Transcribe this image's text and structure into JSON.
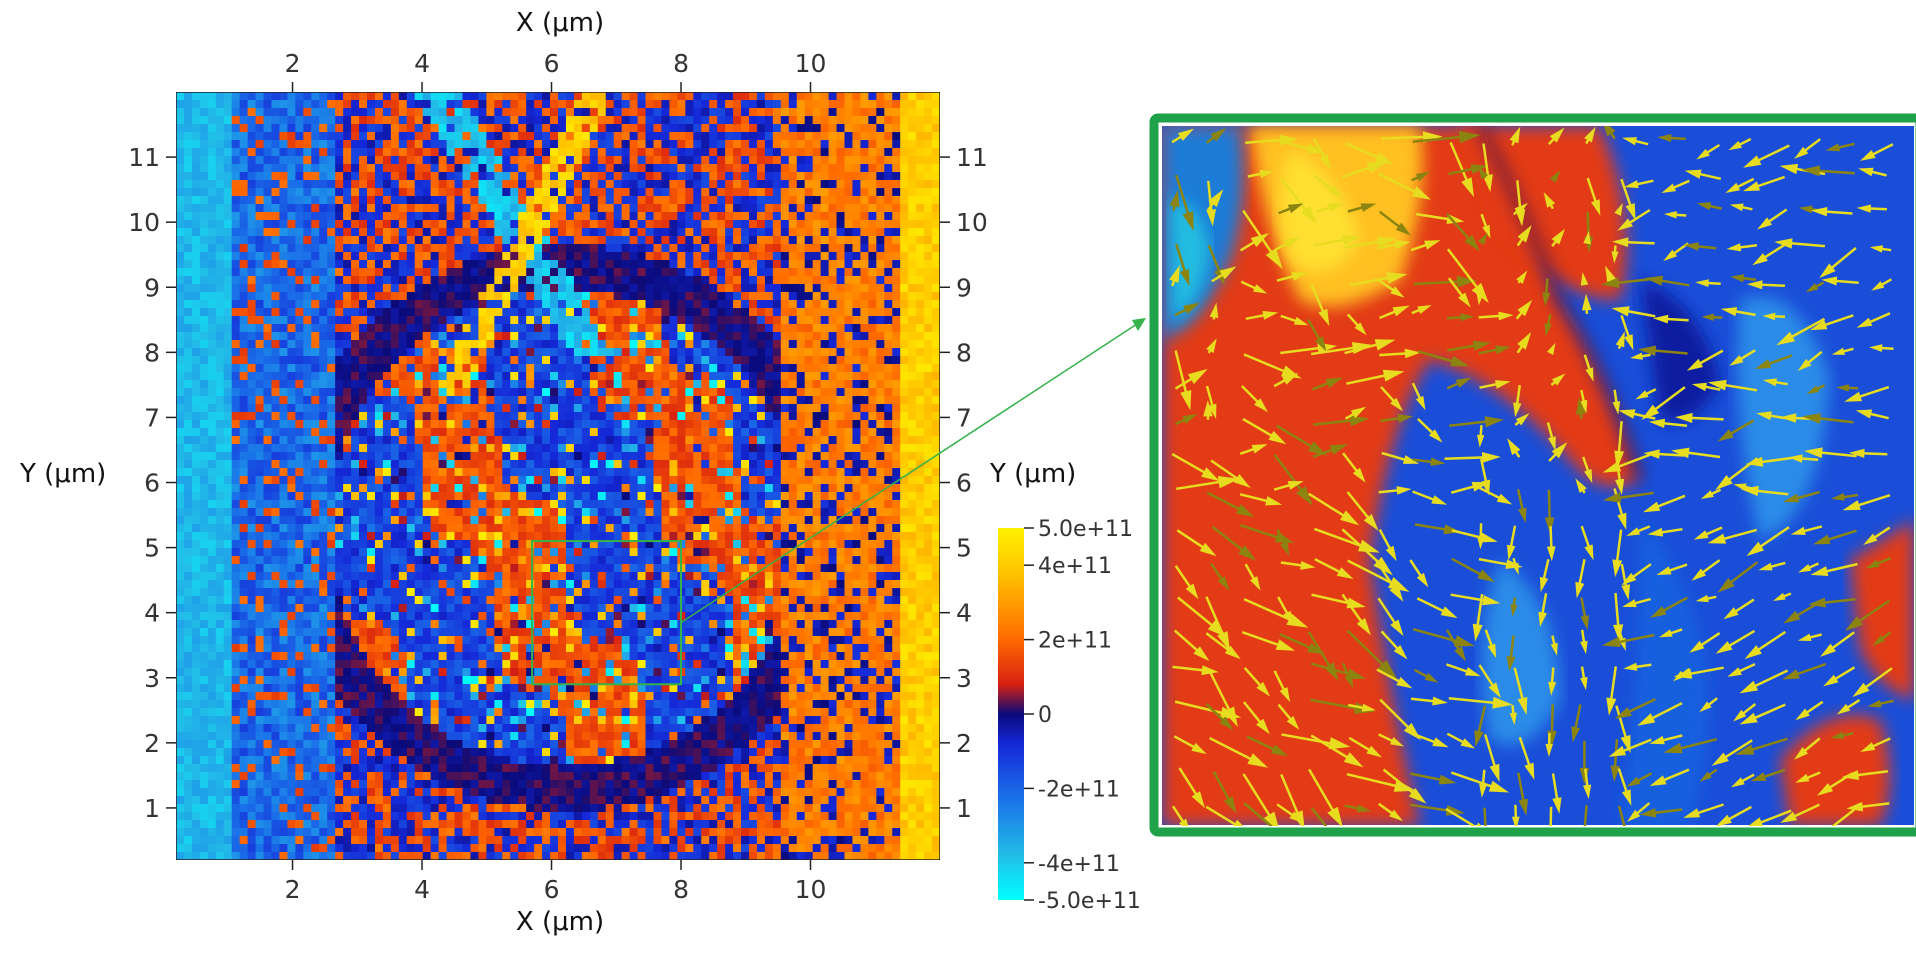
{
  "chart_data": [
    {
      "type": "heatmap",
      "title": "",
      "xlabel": "X (μm)",
      "ylabel": "Y (μm)",
      "xlim": [
        0.2,
        12.0
      ],
      "ylim": [
        0.2,
        12.0
      ],
      "x_ticks": [
        2,
        4,
        6,
        8,
        10
      ],
      "y_ticks": [
        1,
        2,
        3,
        4,
        5,
        6,
        7,
        8,
        9,
        10,
        11
      ],
      "x_axis_positions": [
        "top",
        "bottom"
      ],
      "y_axis_positions": [
        "left",
        "right"
      ],
      "colorbar": {
        "min": -500000000000.0,
        "max": 500000000000.0,
        "colormap": "diverging cyan-blue-dark-blue-red-orange-yellow",
        "tick_values": [
          500000000000.0,
          400000000000.0,
          200000000000.0,
          0,
          -200000000000.0,
          -400000000000.0,
          -500000000000.0
        ],
        "tick_labels": [
          "5.0e+11",
          "4e+11",
          "2e+11",
          "0",
          "-2e+11",
          "-4e+11",
          "-5.0e+11"
        ]
      },
      "inset_box": {
        "x": [
          5.7,
          8.0
        ],
        "y": [
          2.9,
          5.1
        ],
        "color": "#35b24a"
      },
      "features": {
        "ring_center": [
          6.2,
          5.3
        ],
        "ring_radius": 4.0,
        "left_band_x": [
          0.2,
          1.0
        ],
        "right_band_x": [
          11.4,
          12.0
        ]
      }
    },
    {
      "type": "heatmap",
      "title": "",
      "subtype": "zoomed-inset-with-vector-arrows",
      "source_region": {
        "x": [
          5.7,
          8.0
        ],
        "y": [
          2.9,
          5.1
        ]
      },
      "frame_color": "#1fa24a",
      "overlay": "yellow glyph arrows (vector field)"
    }
  ],
  "colors": {
    "inset_frame": "#1fa24a",
    "inset_box": "#35b24a",
    "connector": "#35b24a",
    "arrow": "#e7dc1f"
  }
}
